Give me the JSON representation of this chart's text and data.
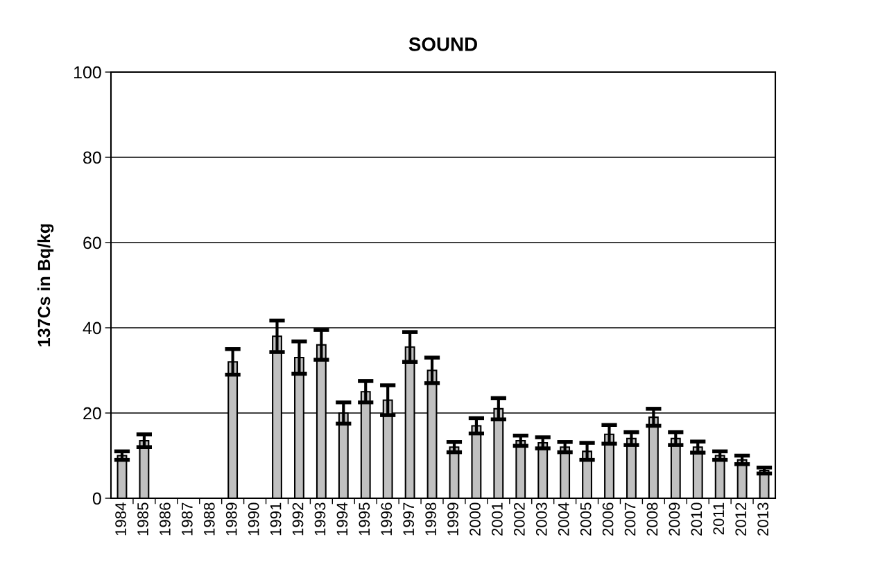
{
  "chart_data": {
    "type": "bar",
    "title": "SOUND",
    "ylabel": "137Cs in Bq/kg",
    "categories": [
      "1984",
      "1985",
      "1986",
      "1987",
      "1988",
      "1989",
      "1990",
      "1991",
      "1992",
      "1993",
      "1994",
      "1995",
      "1996",
      "1997",
      "1998",
      "1999",
      "2000",
      "2001",
      "2002",
      "2003",
      "2004",
      "2005",
      "2006",
      "2007",
      "2008",
      "2009",
      "2010",
      "2011",
      "2012",
      "2013"
    ],
    "values": [
      10,
      13.5,
      null,
      null,
      null,
      32,
      null,
      38,
      33,
      36,
      20,
      25,
      23,
      35.5,
      30,
      12,
      17,
      21,
      13.5,
      13,
      12,
      11,
      15,
      14,
      19,
      14,
      12,
      10,
      9,
      6.5
    ],
    "errors": [
      1,
      1.5,
      null,
      null,
      null,
      3,
      null,
      3.7,
      3.8,
      3.5,
      2.5,
      2.5,
      3.5,
      3.5,
      3,
      1.2,
      1.8,
      2.5,
      1.2,
      1.3,
      1.2,
      2,
      2.2,
      1.5,
      2,
      1.5,
      1.3,
      1,
      1,
      0.7
    ],
    "color": "#c0c0c0",
    "ylim": [
      0,
      100
    ],
    "yticks": [
      0,
      20,
      40,
      60,
      80,
      100
    ],
    "grid": "y"
  }
}
